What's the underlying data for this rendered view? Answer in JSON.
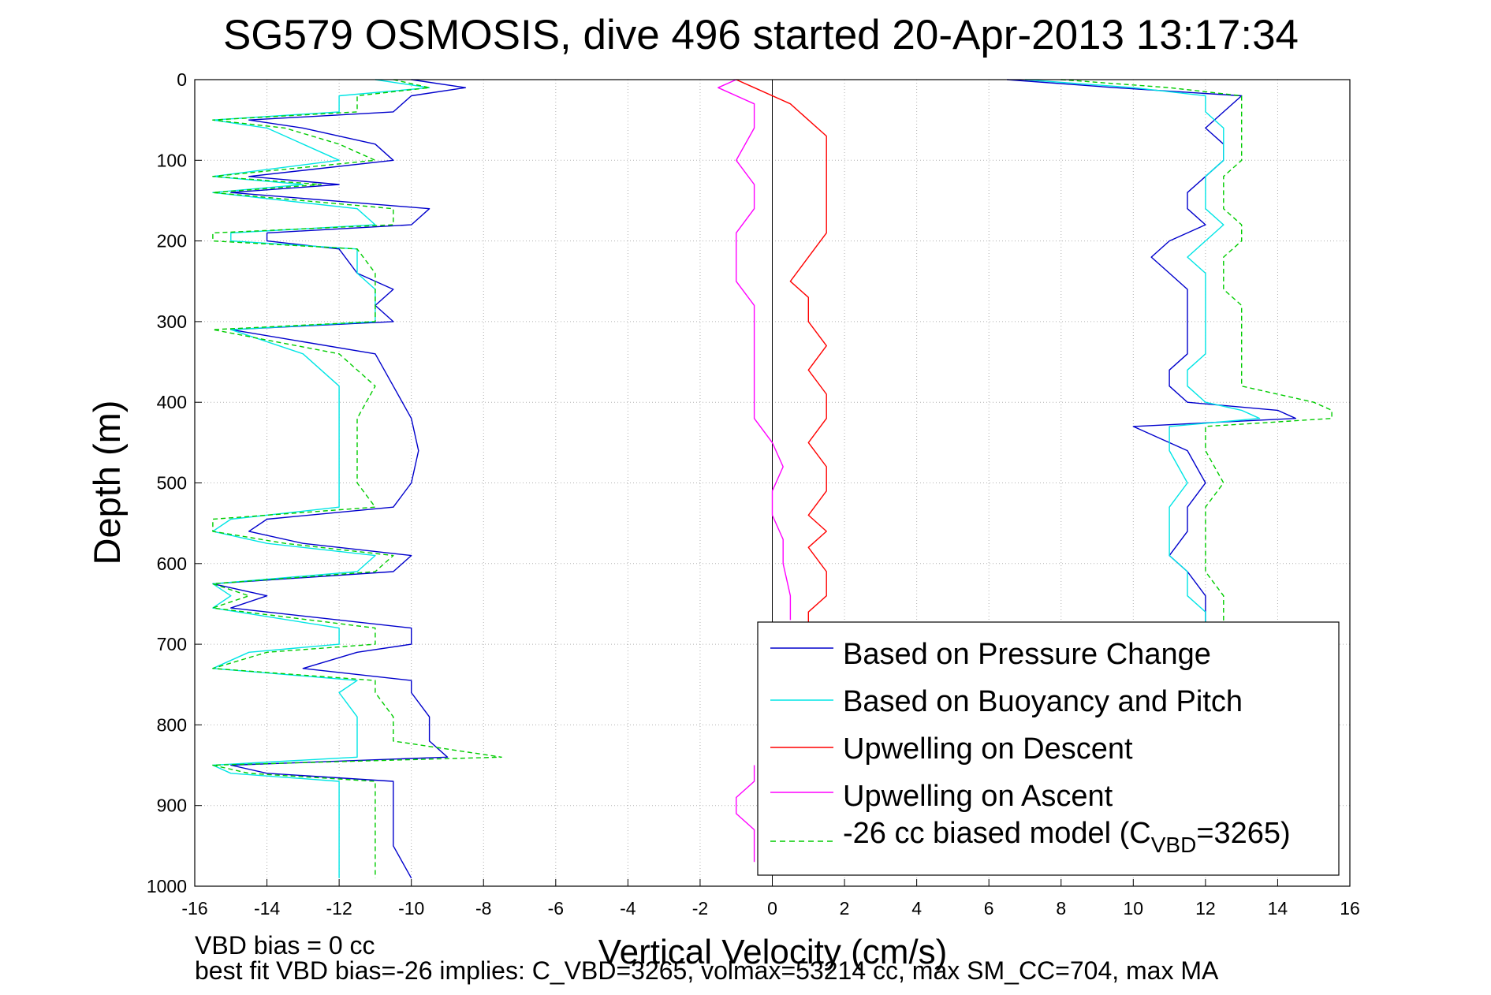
{
  "chart_data": {
    "type": "line",
    "title": "SG579 OSMOSIS, dive 496 started 20-Apr-2013 13:17:34",
    "xlabel": "Vertical Velocity (cm/s)",
    "ylabel": "Depth (m)",
    "xlim": [
      -16,
      16
    ],
    "ylim": [
      0,
      1000
    ],
    "y_reversed": true,
    "grid": true,
    "legend_position": "bottom-right",
    "xticks": [
      "-16",
      "-14",
      "-12",
      "-10",
      "-8",
      "-6",
      "-4",
      "-2",
      "0",
      "2",
      "4",
      "6",
      "8",
      "10",
      "12",
      "14",
      "16"
    ],
    "yticks": [
      "0",
      "100",
      "200",
      "300",
      "400",
      "500",
      "600",
      "700",
      "800",
      "900",
      "1000"
    ],
    "legend": {
      "line1": "Based on Pressure Change",
      "line2": "Based on Buoyancy and Pitch",
      "line3": "Upwelling on Descent",
      "line4": "Upwelling on Ascent",
      "line5_prefix": "-26 cc biased model (C",
      "line5_sub": "VBD",
      "line5_suffix": "=3265)"
    },
    "footer": {
      "line1": "VBD bias = 0 cc",
      "line2": "best fit VBD bias=-26 implies: C_VBD=3265, volmax=53214 cc, max SM_CC=704, max MA"
    },
    "series": [
      {
        "name": "Based on Pressure Change",
        "color": "#0000cc",
        "segments": [
          {
            "y": [
              0,
              10,
              20,
              40,
              50,
              60,
              80,
              100,
              120,
              130,
              140,
              160,
              180,
              190,
              200,
              210,
              240,
              260,
              280,
              300,
              310,
              340,
              380,
              420,
              460,
              500,
              530,
              545,
              560,
              575,
              590,
              610,
              625,
              640,
              655,
              680,
              700,
              710,
              730,
              745,
              760,
              790,
              820,
              840,
              850,
              860,
              870,
              900,
              950,
              990
            ],
            "x": [
              -10,
              -8.5,
              -10,
              -10.5,
              -14.5,
              -13,
              -11,
              -10.5,
              -14.5,
              -12,
              -15,
              -9.5,
              -10,
              -14,
              -14,
              -12,
              -11.5,
              -10.5,
              -11,
              -10.5,
              -15,
              -11,
              -10.5,
              -10,
              -9.8,
              -10,
              -10.5,
              -14,
              -14.5,
              -13,
              -10,
              -10.5,
              -15.5,
              -14,
              -15,
              -10,
              -10,
              -11.5,
              -13,
              -10,
              -10,
              -9.5,
              -9.5,
              -9,
              -15,
              -14,
              -10.5,
              -10.5,
              -10.5,
              -10
            ]
          },
          {
            "y": [
              0,
              10,
              20,
              40,
              60,
              80,
              100,
              120,
              140,
              160,
              180,
              200,
              220,
              240,
              260,
              280,
              300,
              320,
              340,
              360,
              380,
              400,
              410,
              420,
              430,
              460,
              500,
              530,
              560,
              590,
              610,
              640,
              660,
              680
            ],
            "x": [
              6.5,
              9.5,
              13,
              12.5,
              12,
              12.5,
              12.5,
              12,
              11.5,
              11.5,
              12,
              11,
              10.5,
              11,
              11.5,
              11.5,
              11.5,
              11.5,
              11.5,
              11,
              11,
              11.5,
              14,
              14.5,
              10,
              11.5,
              12,
              11.5,
              11.5,
              11,
              11.5,
              12,
              12,
              12
            ]
          }
        ]
      },
      {
        "name": "Based on Buoyancy and Pitch",
        "color": "#00e5e5",
        "segments": [
          {
            "y": [
              0,
              10,
              20,
              40,
              50,
              60,
              80,
              100,
              120,
              130,
              140,
              160,
              180,
              190,
              200,
              210,
              240,
              260,
              280,
              300,
              310,
              340,
              380,
              420,
              460,
              500,
              530,
              545,
              560,
              575,
              590,
              610,
              625,
              640,
              655,
              680,
              700,
              710,
              730,
              745,
              760,
              790,
              820,
              840,
              850,
              860,
              870,
              900,
              950,
              990
            ],
            "x": [
              -11,
              -9.5,
              -12,
              -12,
              -15.5,
              -14,
              -13,
              -12,
              -15.5,
              -13,
              -15.5,
              -11.5,
              -11,
              -15,
              -15,
              -11.5,
              -11.5,
              -11,
              -11,
              -11,
              -15,
              -13,
              -12,
              -12,
              -12,
              -12,
              -12,
              -15,
              -15.5,
              -14,
              -11,
              -11.5,
              -15.5,
              -15,
              -15.5,
              -12,
              -12,
              -14.5,
              -15.5,
              -11.5,
              -12,
              -11.5,
              -11.5,
              -11.5,
              -15.5,
              -15,
              -12,
              -12,
              -12,
              -12
            ]
          },
          {
            "y": [
              0,
              10,
              20,
              40,
              60,
              80,
              100,
              120,
              140,
              160,
              180,
              200,
              220,
              240,
              260,
              280,
              300,
              320,
              340,
              360,
              380,
              400,
              410,
              420,
              430,
              460,
              500,
              530,
              560,
              590,
              610,
              640,
              660,
              680
            ],
            "x": [
              7,
              10,
              12,
              12,
              12.5,
              12.5,
              12.5,
              12,
              12,
              12,
              12.5,
              12,
              11.5,
              12,
              12,
              12,
              12,
              12,
              12,
              11.5,
              11.5,
              12,
              13,
              13.5,
              11,
              11,
              11.5,
              11,
              11,
              11,
              11.5,
              11.5,
              12,
              12
            ]
          }
        ]
      },
      {
        "name": "Upwelling on Descent",
        "color": "#ff0000",
        "segments": [
          {
            "y": [
              0,
              10,
              30,
              50,
              70,
              100,
              130,
              150,
              170,
              190,
              220,
              250,
              270,
              300,
              330,
              360,
              390,
              420,
              450,
              480,
              510,
              540,
              560,
              580,
              610,
              640,
              660,
              680
            ],
            "x": [
              -1,
              -0.5,
              0.5,
              1,
              1.5,
              1.5,
              1.5,
              1.5,
              1.5,
              1.5,
              1,
              0.5,
              1,
              1,
              1.5,
              1,
              1.5,
              1.5,
              1,
              1.5,
              1.5,
              1,
              1.5,
              1,
              1.5,
              1.5,
              1,
              1
            ]
          }
        ]
      },
      {
        "name": "Upwelling on Ascent",
        "color": "#ff00ff",
        "segments": [
          {
            "y": [
              0,
              10,
              30,
              60,
              100,
              130,
              160,
              190,
              220,
              250,
              280,
              300,
              330,
              360,
              390,
              420,
              450,
              480,
              510,
              540,
              570,
              600,
              640,
              670
            ],
            "x": [
              -1,
              -1.5,
              -0.5,
              -0.5,
              -1,
              -0.5,
              -0.5,
              -1,
              -1,
              -1,
              -0.5,
              -0.5,
              -0.5,
              -0.5,
              -0.5,
              -0.5,
              0,
              0.3,
              0,
              0,
              0.3,
              0.3,
              0.5,
              0.5
            ]
          },
          {
            "y": [
              850,
              870,
              890,
              910,
              930,
              950,
              970
            ],
            "x": [
              -0.5,
              -0.5,
              -1,
              -1,
              -0.5,
              -0.5,
              -0.5
            ]
          }
        ]
      },
      {
        "name": "-26 cc biased model (CVBD=3265)",
        "color": "#00cc00",
        "dashed": true,
        "segments": [
          {
            "y": [
              0,
              10,
              20,
              40,
              50,
              60,
              80,
              100,
              120,
              130,
              140,
              160,
              180,
              190,
              200,
              210,
              240,
              260,
              280,
              300,
              310,
              340,
              380,
              420,
              460,
              500,
              530,
              545,
              560,
              575,
              590,
              610,
              625,
              640,
              655,
              680,
              700,
              710,
              730,
              745,
              760,
              790,
              820,
              840,
              850,
              860,
              870,
              900,
              950,
              990
            ],
            "x": [
              -10.5,
              -9.5,
              -11.5,
              -11.5,
              -15.5,
              -13.5,
              -12,
              -11,
              -15.5,
              -12.5,
              -15.5,
              -10.5,
              -10.5,
              -15.5,
              -15.5,
              -11.5,
              -11,
              -11,
              -11,
              -11,
              -15.5,
              -12,
              -11,
              -11.5,
              -11.5,
              -11.5,
              -11,
              -15.5,
              -15.5,
              -13.5,
              -10.5,
              -11,
              -15.5,
              -14.5,
              -15.5,
              -11,
              -11,
              -14,
              -15.5,
              -11,
              -11,
              -10.5,
              -10.5,
              -7.5,
              -15.5,
              -14.5,
              -11,
              -11,
              -11,
              -11
            ]
          },
          {
            "y": [
              0,
              10,
              20,
              40,
              60,
              80,
              100,
              120,
              140,
              160,
              180,
              200,
              220,
              240,
              260,
              280,
              300,
              320,
              340,
              360,
              380,
              400,
              410,
              420,
              430,
              460,
              500,
              530,
              560,
              590,
              610,
              640,
              660,
              680
            ],
            "x": [
              8,
              11,
              13,
              13,
              13,
              13,
              13,
              12.5,
              12.5,
              12.5,
              13,
              13,
              12.5,
              12.5,
              12.5,
              13,
              13,
              13,
              13,
              13,
              13,
              15,
              15.5,
              15.5,
              12,
              12,
              12.5,
              12,
              12,
              12,
              12,
              12.5,
              12.5,
              12.5
            ]
          }
        ]
      }
    ]
  }
}
